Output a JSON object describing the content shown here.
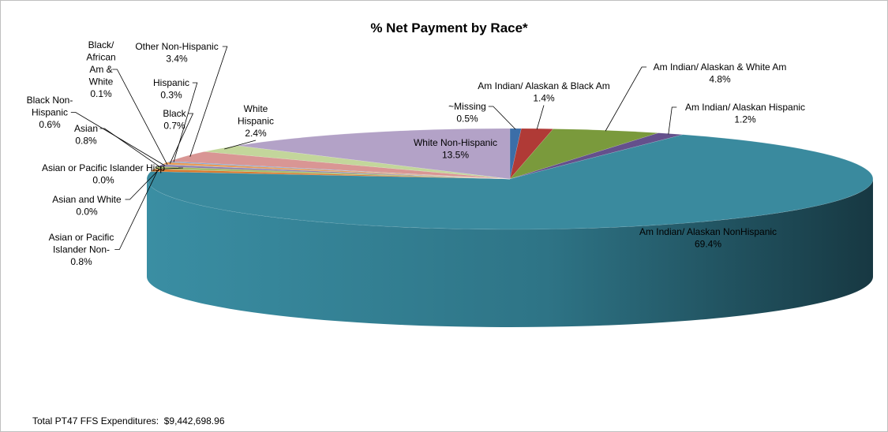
{
  "chart_data": {
    "type": "pie",
    "title": "% Net Payment by Race*",
    "slices": [
      {
        "label": [
          "~Missing",
          "0.5%"
        ],
        "value": 0.5,
        "color": "#3c6ea8"
      },
      {
        "label": [
          "Am Indian/ Alaskan & Black Am",
          "1.4%"
        ],
        "value": 1.4,
        "color": "#b03a36"
      },
      {
        "label": [
          "Am Indian/ Alaskan & White Am",
          "4.8%"
        ],
        "value": 4.8,
        "color": "#7a9a3c"
      },
      {
        "label": [
          "Am Indian/ Alaskan Hispanic",
          "1.2%"
        ],
        "value": 1.2,
        "color": "#64508c"
      },
      {
        "label": [
          "Am Indian/ Alaskan NonHispanic",
          "69.4%"
        ],
        "value": 69.4,
        "color": "#3a8a9e"
      },
      {
        "label": [
          "Asian or Pacific",
          "Islander Non-",
          "0.8%"
        ],
        "value": 0.8,
        "color": "#d97a2e"
      },
      {
        "label": [
          "Asian and White",
          "0.0%"
        ],
        "value": 0.0,
        "color": "#5a7fb5"
      },
      {
        "label": [
          "Asian or Pacific Islander Hisp",
          "0.0%"
        ],
        "value": 0.0,
        "color": "#c46560"
      },
      {
        "label": [
          "Asian",
          "0.8%"
        ],
        "value": 0.8,
        "color": "#a3bb6b"
      },
      {
        "label": [
          "Black Non-",
          "Hispanic",
          "0.6%"
        ],
        "value": 0.6,
        "color": "#8b79ad"
      },
      {
        "label": [
          "Black/",
          "African",
          "Am &",
          "White",
          "0.1%"
        ],
        "value": 0.1,
        "color": "#5fb0c4"
      },
      {
        "label": [
          "Black",
          "0.7%"
        ],
        "value": 0.7,
        "color": "#e89a56"
      },
      {
        "label": [
          "Hispanic",
          "0.3%"
        ],
        "value": 0.3,
        "color": "#7aa1d2"
      },
      {
        "label": [
          "Other Non-Hispanic",
          "3.4%"
        ],
        "value": 3.4,
        "color": "#d99694"
      },
      {
        "label": [
          "White",
          "Hispanic",
          "2.4%"
        ],
        "value": 2.4,
        "color": "#c3d69b"
      },
      {
        "label": [
          "White Non-Hispanic",
          "13.5%"
        ],
        "value": 13.5,
        "color": "#b3a2c7"
      }
    ]
  },
  "footer": {
    "label": "Total PT47 FFS Expenditures:",
    "amount": "$9,442,698.96"
  }
}
